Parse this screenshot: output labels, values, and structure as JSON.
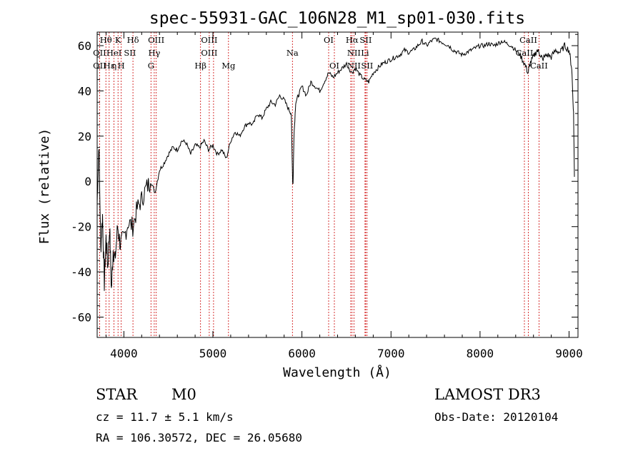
{
  "chart_data": {
    "type": "line",
    "title": "spec-55931-GAC_106N28_M1_sp01-030.fits",
    "xlabel": "Wavelength (Å)",
    "ylabel": "Flux (relative)",
    "xlim": [
      3700,
      9100
    ],
    "ylim": [
      -69,
      66
    ],
    "x_ticks": [
      4000,
      5000,
      6000,
      7000,
      8000,
      9000
    ],
    "y_ticks": [
      -60,
      -40,
      -20,
      0,
      20,
      40,
      60
    ],
    "grid": false,
    "series": [
      {
        "name": "spectrum",
        "x": [
          3700,
          3720,
          3740,
          3760,
          3780,
          3800,
          3820,
          3840,
          3860,
          3880,
          3900,
          3930,
          3960,
          4000,
          4050,
          4100,
          4150,
          4200,
          4250,
          4300,
          4350,
          4400,
          4450,
          4500,
          4550,
          4600,
          4650,
          4700,
          4750,
          4800,
          4850,
          4900,
          4950,
          5000,
          5050,
          5100,
          5150,
          5200,
          5250,
          5300,
          5350,
          5400,
          5450,
          5500,
          5550,
          5600,
          5650,
          5700,
          5750,
          5800,
          5850,
          5880,
          5895,
          5900,
          5910,
          5930,
          5960,
          6000,
          6050,
          6100,
          6150,
          6200,
          6250,
          6300,
          6350,
          6400,
          6450,
          6500,
          6560,
          6600,
          6650,
          6700,
          6750,
          6800,
          6850,
          6900,
          6950,
          7000,
          7050,
          7100,
          7150,
          7200,
          7250,
          7300,
          7350,
          7400,
          7450,
          7500,
          7550,
          7600,
          7650,
          7700,
          7750,
          7800,
          7850,
          7900,
          7950,
          8000,
          8050,
          8100,
          8150,
          8200,
          8250,
          8300,
          8350,
          8400,
          8450,
          8500,
          8540,
          8560,
          8600,
          8640,
          8680,
          8700,
          8750,
          8800,
          8850,
          8900,
          8950,
          9000,
          9030,
          9050,
          9060
        ],
        "y": [
          -10,
          18,
          -30,
          -15,
          -45,
          -25,
          -38,
          -20,
          -48,
          -30,
          -35,
          -20,
          -28,
          -25,
          -18,
          -20,
          -12,
          -8,
          -3,
          0,
          -5,
          5,
          8,
          12,
          15,
          14,
          18,
          17,
          12,
          16,
          15,
          18,
          14,
          16,
          12,
          14,
          10,
          18,
          22,
          20,
          24,
          26,
          25,
          30,
          28,
          32,
          35,
          34,
          38,
          36,
          32,
          30,
          0,
          -1,
          20,
          35,
          38,
          42,
          38,
          44,
          42,
          40,
          44,
          48,
          46,
          48,
          50,
          52,
          48,
          50,
          47,
          45,
          44,
          48,
          50,
          52,
          53,
          54,
          55,
          56,
          58,
          57,
          58,
          60,
          62,
          60,
          62,
          63,
          62,
          61,
          60,
          58,
          57,
          56,
          57,
          58,
          59,
          60,
          60,
          61,
          60,
          61,
          62,
          61,
          60,
          58,
          56,
          52,
          48,
          52,
          55,
          58,
          56,
          54,
          56,
          55,
          58,
          57,
          60,
          58,
          50,
          30,
          2
        ]
      }
    ],
    "line_markers": [
      {
        "label": "Hθ",
        "x": 3798,
        "row": 1
      },
      {
        "label": "OII",
        "x": 3727,
        "row": 2
      },
      {
        "label": "OII",
        "x": 3727,
        "row": 3
      },
      {
        "label": "Hε",
        "x": 3835,
        "row": 3
      },
      {
        "label": "K",
        "x": 3934,
        "row": 1
      },
      {
        "label": "HeI",
        "x": 3889,
        "row": 2
      },
      {
        "label": "η",
        "x": 3890,
        "row": 3
      },
      {
        "label": "Hδ",
        "x": 4102,
        "row": 1
      },
      {
        "label": "SII",
        "x": 4068,
        "row": 2
      },
      {
        "label": "H",
        "x": 3970,
        "row": 3
      },
      {
        "label": "OIII",
        "x": 4363,
        "row": 1
      },
      {
        "label": "Hγ",
        "x": 4341,
        "row": 2
      },
      {
        "label": "G",
        "x": 4304,
        "row": 3
      },
      {
        "label": "OIII",
        "x": 4959,
        "row": 1
      },
      {
        "label": "OIII",
        "x": 4959,
        "row": 2
      },
      {
        "label": "Hβ",
        "x": 4861,
        "row": 3
      },
      {
        "label": "Mg",
        "x": 5175,
        "row": 3
      },
      {
        "label": "Na",
        "x": 5893,
        "row": 2
      },
      {
        "label": "OI",
        "x": 6300,
        "row": 1
      },
      {
        "label": "OI",
        "x": 6364,
        "row": 3
      },
      {
        "label": "Hα",
        "x": 6563,
        "row": 1
      },
      {
        "label": "SII",
        "x": 6716,
        "row": 1
      },
      {
        "label": "NII",
        "x": 6584,
        "row": 2
      },
      {
        "label": "Li",
        "x": 6708,
        "row": 2
      },
      {
        "label": "NII",
        "x": 6584,
        "row": 3
      },
      {
        "label": "SII",
        "x": 6731,
        "row": 3
      },
      {
        "label": "CaII",
        "x": 8542,
        "row": 1
      },
      {
        "label": "CaII",
        "x": 8498,
        "row": 2
      },
      {
        "label": "CaII",
        "x": 8662,
        "row": 3
      }
    ],
    "marker_lines_x": [
      3727,
      3798,
      3835,
      3889,
      3934,
      3970,
      4102,
      4304,
      4341,
      4363,
      4861,
      4959,
      5007,
      5175,
      5893,
      6300,
      6364,
      6548,
      6563,
      6584,
      6708,
      6716,
      6731,
      8498,
      8542,
      8662
    ]
  },
  "info": {
    "class_label": "STAR",
    "subclass_label": "M0",
    "cz_text": "cz = 11.7 ± 5.1 km/s",
    "coords_text": "RA = 106.30572, DEC =  26.05680",
    "survey_label": "LAMOST DR3",
    "obs_date_text": "Obs-Date: 20120104"
  },
  "colors": {
    "marker_line": "#cc0000",
    "spectrum": "#000000",
    "axes": "#000000"
  }
}
